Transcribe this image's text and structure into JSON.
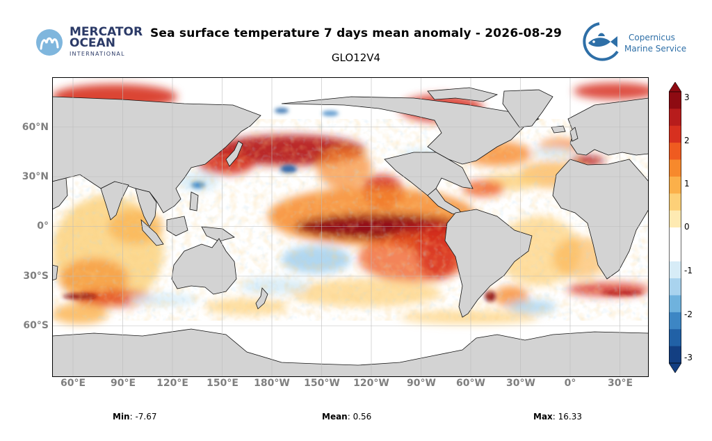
{
  "header": {
    "title": "Sea surface temperature 7 days mean anomaly - 2026-08-29",
    "subtitle": "GLO12V4"
  },
  "logos": {
    "left": {
      "line1": "MERCATOR",
      "line2": "OCEAN",
      "line3": "INTERNATIONAL",
      "icon": "mercator-m-icon",
      "color": "#2b3a67"
    },
    "right": {
      "line1": "Copernicus",
      "line2": "Marine Service",
      "icon": "fish-icon",
      "color": "#2e6fa7"
    }
  },
  "map": {
    "lat_labels": [
      "60°N",
      "30°N",
      "0°",
      "30°S",
      "60°S"
    ],
    "lon_labels": [
      "60°E",
      "90°E",
      "120°E",
      "150°E",
      "180°W",
      "150°W",
      "120°W",
      "90°W",
      "60°W",
      "30°W",
      "0°",
      "30°E"
    ],
    "land_color": "#d3d3d3",
    "grid_color": "#bcbcbc"
  },
  "colorbar": {
    "min": -3,
    "max": 3,
    "ticks": [
      "3",
      "2",
      "1",
      "0",
      "-1",
      "-2",
      "-3"
    ],
    "colors_high_to_low": [
      "#8e0b12",
      "#b71c1c",
      "#d7301f",
      "#ef5b20",
      "#f7892c",
      "#fbb04a",
      "#fdd078",
      "#feeab2",
      "#ffffff",
      "#ffffff",
      "#d7ecf7",
      "#a9d3ee",
      "#6fb2dd",
      "#3d86c4",
      "#2161a6",
      "#133f82"
    ]
  },
  "stats": {
    "min_label": "Min",
    "min_value": ": -7.67",
    "mean_label": "Mean",
    "mean_value": ": 0.56",
    "max_label": "Max",
    "max_value": ": 16.33"
  }
}
